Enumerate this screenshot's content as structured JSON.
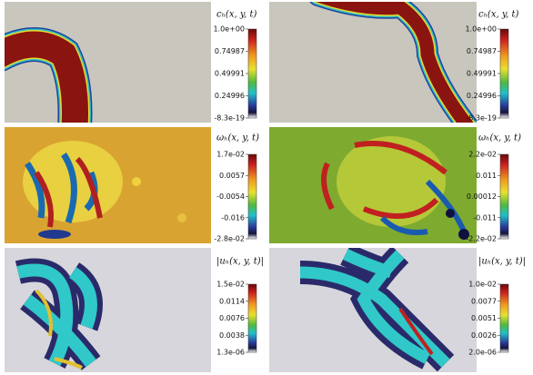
{
  "panels": [
    {
      "label": "cₕ(x, y, t)",
      "ticks": [
        "1.0e+00",
        "0.74987",
        "0.49991",
        "0.24996",
        "-8.3e-19"
      ]
    },
    {
      "label": "cₕ(x, y, t)",
      "ticks": [
        "1.0e+00",
        "0.74987",
        "0.49991",
        "0.24996",
        "-8.3e-19"
      ]
    },
    {
      "label": "ωₕ(x, y, t)",
      "ticks": [
        "1.7e-02",
        "0.0057",
        "-0.0054",
        "-0.016",
        "-2.8e-02"
      ]
    },
    {
      "label": "ωₕ(x, y, t)",
      "ticks": [
        "2.2e-02",
        "0.011",
        "0.00012",
        "-0.011",
        "-2.2e-02"
      ]
    },
    {
      "label": "|uₕ(x, y, t)|",
      "ticks": [
        "1.5e-02",
        "0.0114",
        "0.0076",
        "0.0038",
        "1.3e-06"
      ]
    },
    {
      "label": "|uₕ(x, y, t)|",
      "ticks": [
        "1.0e-02",
        "0.0077",
        "0.0051",
        "0.0026",
        "2.0e-06"
      ]
    }
  ]
}
